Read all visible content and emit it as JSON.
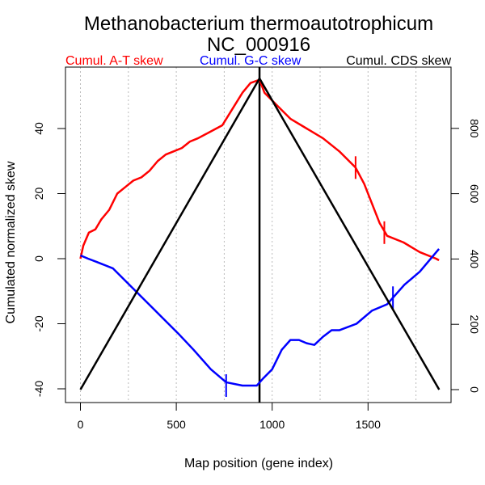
{
  "chart_data": {
    "type": "line",
    "title": "Methanobacterium thermoautotrophicum",
    "subtitle": "NC_000916",
    "xlabel": "Map position (gene index)",
    "ylabel": "Cumulated normalized skew",
    "xlim": [
      -80,
      1930
    ],
    "ylim": [
      -44,
      59
    ],
    "ylim_right": [
      -30,
      1000
    ],
    "x_ticks": [
      0,
      500,
      1000,
      1500
    ],
    "y_ticks": [
      -40,
      -20,
      0,
      20,
      40
    ],
    "y_right_ticks": [
      0,
      200,
      400,
      600,
      800
    ],
    "grid_x": [
      0,
      250,
      500,
      750,
      1000,
      1250,
      1500,
      1750
    ],
    "origin_position": 934,
    "legend": [
      {
        "label": "Cumul. A-T skew",
        "color": "#ff0000"
      },
      {
        "label": "Cumul. G-C skew",
        "color": "#0000ff"
      },
      {
        "label": "Cumul. CDS skew",
        "color": "#000000"
      }
    ],
    "series": [
      {
        "name": "Cumul. A-T skew",
        "color": "#ff0000",
        "axis": "left",
        "points": [
          [
            0,
            0
          ],
          [
            15,
            4
          ],
          [
            44,
            8
          ],
          [
            78,
            9
          ],
          [
            108,
            12
          ],
          [
            150,
            15
          ],
          [
            192,
            20
          ],
          [
            234,
            22
          ],
          [
            276,
            24
          ],
          [
            318,
            25
          ],
          [
            360,
            27
          ],
          [
            403,
            30
          ],
          [
            445,
            32
          ],
          [
            487,
            33
          ],
          [
            529,
            34
          ],
          [
            571,
            36
          ],
          [
            613,
            37
          ],
          [
            677,
            39
          ],
          [
            740,
            41
          ],
          [
            803,
            47
          ],
          [
            845,
            51
          ],
          [
            887,
            54
          ],
          [
            934,
            55
          ],
          [
            960,
            51
          ],
          [
            1010,
            48
          ],
          [
            1095,
            43
          ],
          [
            1180,
            40
          ],
          [
            1265,
            37
          ],
          [
            1350,
            33
          ],
          [
            1435,
            28
          ],
          [
            1480,
            23
          ],
          [
            1520,
            17
          ],
          [
            1560,
            11
          ],
          [
            1600,
            7
          ],
          [
            1685,
            5
          ],
          [
            1770,
            2
          ],
          [
            1855,
            0
          ],
          [
            1870,
            -0.5
          ]
        ],
        "markers": [
          [
            1435,
            28
          ],
          [
            1585,
            8
          ]
        ]
      },
      {
        "name": "Cumul. G-C skew",
        "color": "#0000ff",
        "axis": "left",
        "points": [
          [
            0,
            1
          ],
          [
            40,
            0
          ],
          [
            85,
            -1
          ],
          [
            170,
            -3
          ],
          [
            255,
            -8
          ],
          [
            340,
            -13
          ],
          [
            425,
            -18
          ],
          [
            510,
            -23
          ],
          [
            590,
            -28
          ],
          [
            680,
            -34
          ],
          [
            760,
            -38
          ],
          [
            845,
            -39
          ],
          [
            920,
            -39
          ],
          [
            950,
            -37
          ],
          [
            1000,
            -34
          ],
          [
            1050,
            -28
          ],
          [
            1095,
            -25
          ],
          [
            1140,
            -25
          ],
          [
            1180,
            -26
          ],
          [
            1220,
            -26.5
          ],
          [
            1265,
            -24
          ],
          [
            1310,
            -22
          ],
          [
            1350,
            -22
          ],
          [
            1440,
            -20
          ],
          [
            1520,
            -16
          ],
          [
            1600,
            -14
          ],
          [
            1690,
            -8
          ],
          [
            1770,
            -4
          ],
          [
            1870,
            3
          ]
        ],
        "markers": [
          [
            760,
            -39
          ],
          [
            1630,
            -12
          ]
        ]
      },
      {
        "name": "Cumul. CDS skew",
        "color": "#000000",
        "axis": "right",
        "points": [
          [
            0,
            0
          ],
          [
            934,
            953
          ],
          [
            1871,
            0
          ]
        ]
      }
    ]
  }
}
